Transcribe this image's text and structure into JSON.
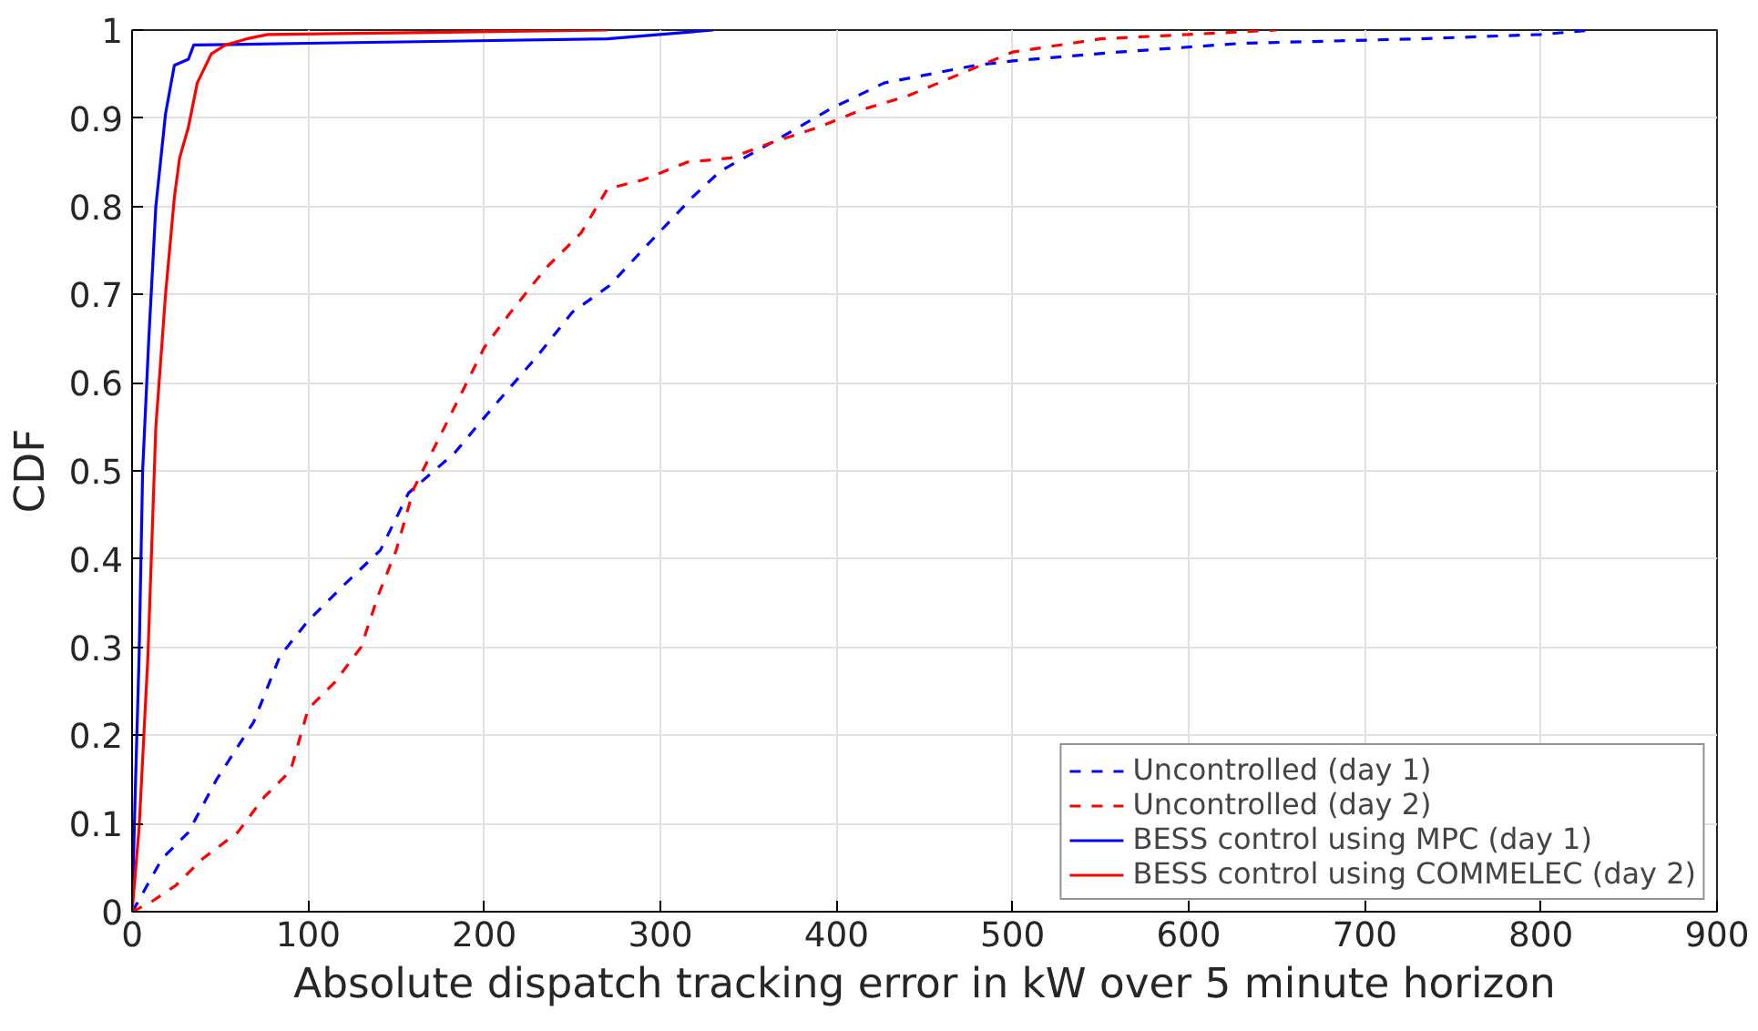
{
  "chart_data": {
    "type": "line",
    "xlabel": "Absolute dispatch tracking error in kW over 5 minute horizon",
    "ylabel": "CDF",
    "xlim": [
      0,
      900
    ],
    "ylim": [
      0,
      1
    ],
    "xticks": [
      0,
      100,
      200,
      300,
      400,
      500,
      600,
      700,
      800,
      900
    ],
    "yticks": [
      0,
      {
        "value": 0.1,
        "label": "0.1"
      },
      {
        "value": 0.2,
        "label": "0.2"
      },
      {
        "value": 0.3,
        "label": "0.3"
      },
      {
        "value": 0.4,
        "label": "0.4"
      },
      {
        "value": 0.5,
        "label": "0.5"
      },
      {
        "value": 0.6,
        "label": "0.6"
      },
      {
        "value": 0.7,
        "label": "0.7"
      },
      {
        "value": 0.8,
        "label": "0.8"
      },
      {
        "value": 0.9,
        "label": "0.9"
      },
      1
    ],
    "grid": true,
    "legend": "bottom right",
    "series": [
      {
        "name": "Uncontrolled (day 1)",
        "color": "#0000ff",
        "line_style": "dashed",
        "x": [
          0,
          3,
          17,
          32,
          48,
          69,
          84,
          100,
          120,
          141,
          157,
          183,
          204,
          230,
          250,
          271,
          292,
          318,
          334,
          370,
          396,
          427,
          479,
          500,
          560,
          630,
          730,
          800,
          830
        ],
        "values": [
          0,
          0.01,
          0.06,
          0.09,
          0.15,
          0.215,
          0.29,
          0.33,
          0.37,
          0.41,
          0.475,
          0.52,
          0.57,
          0.63,
          0.68,
          0.71,
          0.755,
          0.81,
          0.84,
          0.88,
          0.91,
          0.94,
          0.96,
          0.965,
          0.975,
          0.985,
          0.99,
          0.995,
          1
        ]
      },
      {
        "name": "Uncontrolled (day 2)",
        "color": "#ff0000",
        "line_style": "dashed",
        "x": [
          0,
          10,
          25,
          40,
          60,
          75,
          90,
          100,
          115,
          130,
          140,
          150,
          160,
          175,
          190,
          200,
          215,
          235,
          255,
          270,
          290,
          315,
          340,
          360,
          390,
          415,
          440,
          470,
          500,
          550,
          600,
          650
        ],
        "values": [
          0,
          0.01,
          0.03,
          0.06,
          0.09,
          0.13,
          0.16,
          0.23,
          0.26,
          0.3,
          0.36,
          0.41,
          0.48,
          0.54,
          0.6,
          0.64,
          0.68,
          0.73,
          0.77,
          0.82,
          0.83,
          0.85,
          0.855,
          0.87,
          0.89,
          0.91,
          0.925,
          0.95,
          0.975,
          0.99,
          0.995,
          1
        ]
      },
      {
        "name": "BESS control using MPC (day 1)",
        "color": "#0000ff",
        "line_style": "solid",
        "x": [
          0,
          2,
          4,
          6,
          9.5,
          13.5,
          19,
          24,
          32,
          35,
          100,
          270,
          330
        ],
        "values": [
          0,
          0.15,
          0.29,
          0.5,
          0.65,
          0.8,
          0.905,
          0.96,
          0.967,
          0.983,
          0.985,
          0.99,
          1
        ]
      },
      {
        "name": "BESS control using COMMELEC (day 2)",
        "color": "#ff0000",
        "line_style": "solid",
        "x": [
          0,
          4,
          9,
          13.5,
          19,
          24,
          27,
          32,
          37,
          45,
          53,
          65,
          77,
          270
        ],
        "values": [
          0,
          0.095,
          0.29,
          0.55,
          0.7,
          0.81,
          0.855,
          0.89,
          0.94,
          0.973,
          0.983,
          0.99,
          0.995,
          1
        ]
      }
    ]
  }
}
